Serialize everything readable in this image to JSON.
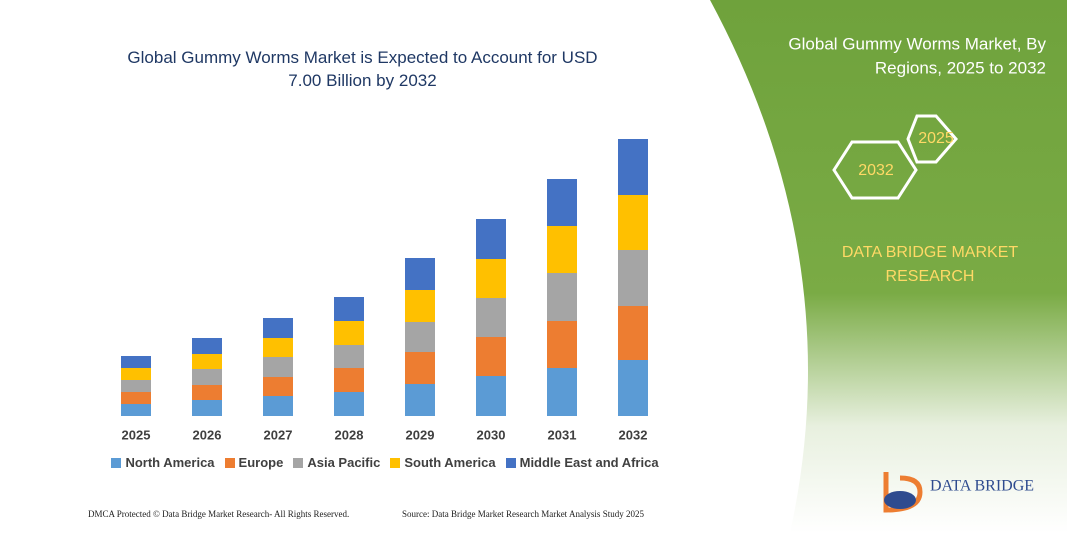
{
  "chart_data": {
    "type": "stacked-bar",
    "title": "Global Gummy Worms Market is Expected to Account for USD 7.00 Billion by 2032",
    "categories": [
      "2025",
      "2026",
      "2027",
      "2028",
      "2029",
      "2030",
      "2031",
      "2032"
    ],
    "series": [
      {
        "name": "North America",
        "color": "#5b9bd5",
        "values": [
          12,
          16,
          20,
          24,
          32,
          40,
          48,
          56
        ]
      },
      {
        "name": "Europe",
        "color": "#ed7d31",
        "values": [
          12,
          15,
          19,
          24,
          32,
          39,
          47,
          54
        ]
      },
      {
        "name": "Asia Pacific",
        "color": "#a5a5a5",
        "values": [
          12,
          16,
          20,
          23,
          30,
          39,
          48,
          56
        ]
      },
      {
        "name": "South America",
        "color": "#ffc000",
        "values": [
          12,
          15,
          19,
          24,
          32,
          39,
          47,
          55
        ]
      },
      {
        "name": "Middle East and Africa",
        "color": "#4472c4",
        "values": [
          12,
          16,
          20,
          24,
          32,
          40,
          47,
          56
        ]
      }
    ],
    "ylim": [
      0,
      280
    ],
    "grid": false
  },
  "panel": {
    "title": [
      "Global Gummy Worms Market, By",
      "Regions, 2025 to 2032"
    ],
    "hexagons": [
      "2025",
      "2032"
    ],
    "brand": [
      "DATA BRIDGE MARKET",
      "RESEARCH"
    ]
  },
  "logo": "DATA BRIDGE",
  "footer": {
    "left": "DMCA Protected © Data Bridge Market Research- All Rights Reserved.",
    "right": "Source: Data Bridge Market Research Market Analysis Study 2025"
  }
}
